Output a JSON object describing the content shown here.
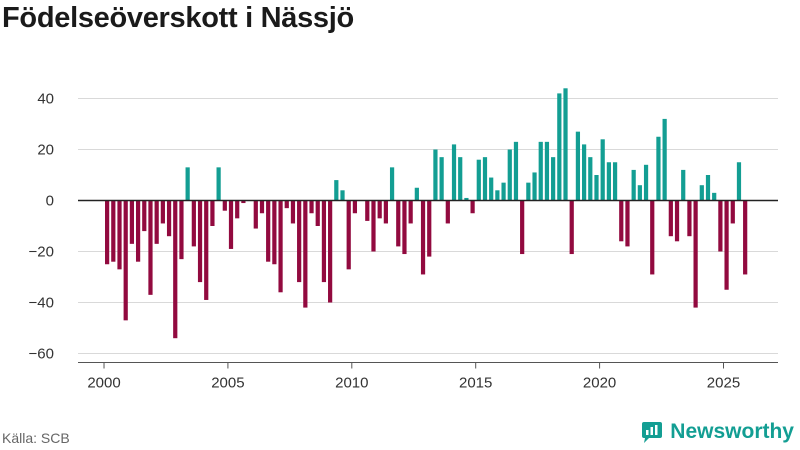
{
  "title": "Födelseöverskott i Nässjö",
  "source": "Källa: SCB",
  "brand": "Newsworthy",
  "colors": {
    "positive": "#139e93",
    "negative": "#920a3f",
    "grid": "#d9d9d9",
    "zero": "#222222",
    "brand": "#139e93"
  },
  "chart_data": {
    "type": "bar",
    "title": "Födelseöverskott i Nässjö",
    "xlabel": "",
    "ylabel": "",
    "frequency": "quarterly",
    "start": 2000.0,
    "ylim": [
      -62,
      50
    ],
    "yticks": [
      40,
      20,
      0,
      -20,
      -40,
      -60
    ],
    "ytick_labels": [
      "40",
      "20",
      "0",
      "−20",
      "−40",
      "−60"
    ],
    "xticks": [
      2000,
      2005,
      2010,
      2015,
      2020,
      2025
    ],
    "xtick_labels": [
      "2000",
      "2005",
      "2010",
      "2015",
      "2020",
      "2025"
    ],
    "values": [
      -25,
      -24,
      -27,
      -47,
      -17,
      -24,
      -12,
      -37,
      -17,
      -9,
      -14,
      -54,
      -23,
      13,
      -18,
      -32,
      -39,
      -10,
      13,
      -4,
      -19,
      -7,
      -1,
      0,
      -11,
      -5,
      -24,
      -25,
      -36,
      -3,
      -9,
      -32,
      -42,
      -5,
      -10,
      -32,
      -40,
      8,
      4,
      -27,
      -5,
      0,
      -8,
      -20,
      -7,
      -9,
      13,
      -18,
      -21,
      -9,
      5,
      -29,
      -22,
      20,
      17,
      -9,
      22,
      17,
      1,
      -5,
      16,
      17,
      9,
      4,
      7,
      20,
      23,
      -21,
      7,
      11,
      23,
      23,
      17,
      42,
      44,
      -21,
      27,
      22,
      17,
      10,
      24,
      15,
      15,
      -16,
      -18,
      12,
      6,
      14,
      -29,
      25,
      32,
      -14,
      -16,
      12,
      -14,
      -42,
      6,
      10,
      3,
      -20,
      -35,
      -9,
      15,
      -29
    ]
  }
}
